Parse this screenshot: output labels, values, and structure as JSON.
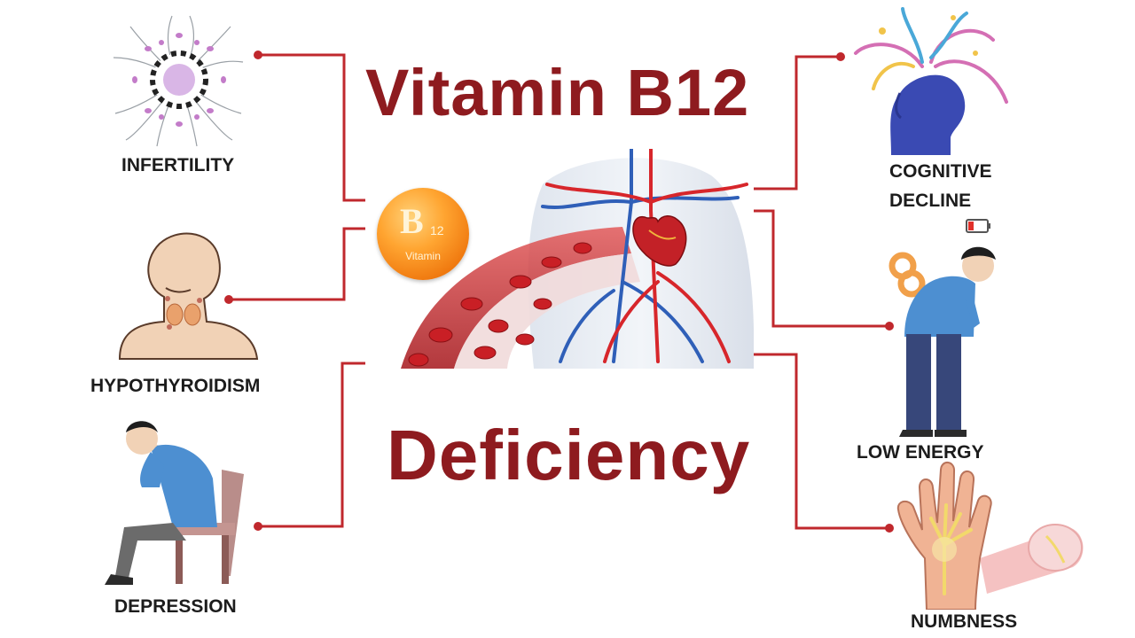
{
  "title": {
    "line1": "Vitamin B12",
    "line2": "Deficiency"
  },
  "badge": {
    "main": "B",
    "sub": "12",
    "word": "Vitamin"
  },
  "symptoms": {
    "infertility": "INFERTILITY",
    "hypothyroidism": "HYPOTHYROIDISM",
    "depression": "DEPRESSION",
    "cognitive_line1": "COGNITIVE",
    "cognitive_line2": "DECLINE",
    "low_energy": "LOW ENERGY",
    "numbness": "NUMBNESS"
  },
  "colors": {
    "title": "#8e1b1f",
    "connector": "#c0282d",
    "artery": "#d7262b",
    "vein": "#2f5fb8"
  }
}
